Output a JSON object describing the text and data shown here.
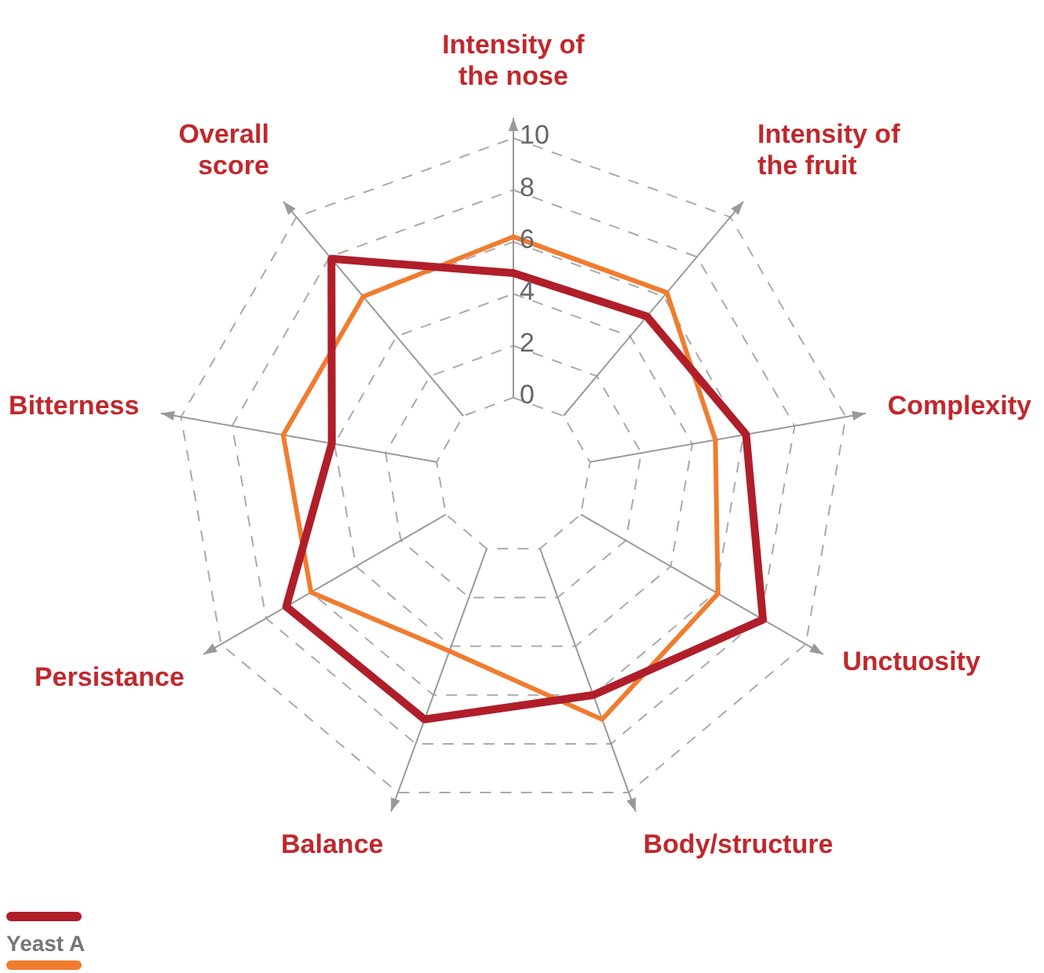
{
  "chart_data": {
    "type": "radar",
    "categories": [
      "Intensity of the nose",
      "Intensity of the fruit",
      "Complexity",
      "Unctuosity",
      "Body/structure",
      "Balance",
      "Persistance",
      "Bitterness",
      "Overall score"
    ],
    "series": [
      {
        "color": "#b01e2a",
        "values": [
          4.8,
          5.0,
          6.1,
          8.1,
          6.0,
          7.0,
          7.1,
          4.1,
          7.9
        ]
      },
      {
        "name": "Yeast A",
        "color": "#f07c30",
        "values": [
          6.2,
          6.2,
          4.9,
          6.1,
          7.0,
          4.2,
          6.0,
          6.0,
          6.0
        ]
      }
    ],
    "ylim": [
      -3,
      10
    ],
    "yticks": [
      0,
      2,
      4,
      6,
      8,
      10
    ],
    "grid": true,
    "legend": "bottom left",
    "marker": "none",
    "line_style": "solid"
  }
}
